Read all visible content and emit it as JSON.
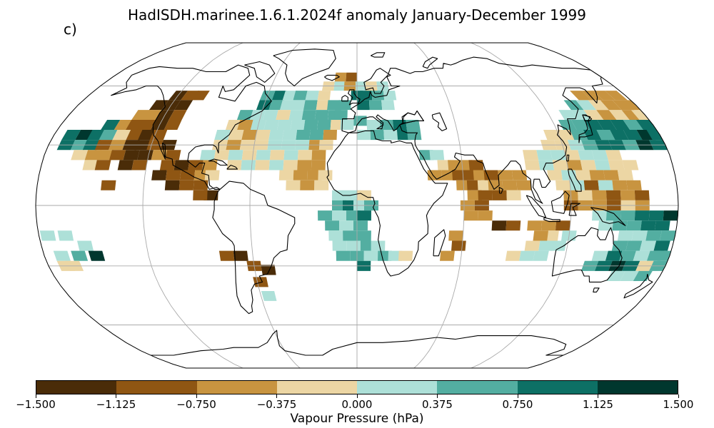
{
  "title": "HadISDH.marinee.1.6.1.2024f anomaly January-December 1999",
  "panel_label": "c)",
  "colorbar": {
    "label": "Vapour Pressure (hPa)",
    "ticks": [
      "−1.500",
      "−1.125",
      "−0.750",
      "−0.375",
      "0.000",
      "0.375",
      "0.750",
      "1.125",
      "1.500"
    ],
    "colors": [
      "#543005",
      "#8c510a",
      "#bf812d",
      "#dfc27d",
      "#f6e8c3",
      "#c7eae5",
      "#80cdc1",
      "#35978f",
      "#01665e",
      "#003c30"
    ],
    "bin_colors": [
      "#4a2c08",
      "#8f5613",
      "#c89440",
      "#ecd6a4",
      "#ade0d8",
      "#53aea1",
      "#0d7065",
      "#00372e"
    ]
  },
  "chart_data": {
    "type": "heatmap",
    "projection": "Robinson",
    "variable": "Vapour Pressure anomaly",
    "units": "hPa",
    "vmin": -1.5,
    "vmax": 1.5,
    "graticule": {
      "lon_step": 60,
      "lat_step": 30
    },
    "grid_cells": [
      [
        -120,
        55,
        0
      ],
      [
        -112,
        55,
        1
      ],
      [
        -105,
        55,
        1
      ],
      [
        -128,
        50,
        0
      ],
      [
        -120,
        50,
        0
      ],
      [
        -112,
        50,
        0
      ],
      [
        -135,
        45,
        2
      ],
      [
        -128,
        45,
        2
      ],
      [
        -120,
        45,
        0
      ],
      [
        -112,
        45,
        1
      ],
      [
        -150,
        40,
        6
      ],
      [
        -142,
        40,
        2
      ],
      [
        -135,
        40,
        1
      ],
      [
        -128,
        40,
        1
      ],
      [
        -120,
        40,
        0
      ],
      [
        -112,
        40,
        1
      ],
      [
        -170,
        35,
        6
      ],
      [
        -162,
        35,
        7
      ],
      [
        -155,
        35,
        6
      ],
      [
        -148,
        35,
        5
      ],
      [
        -140,
        35,
        3
      ],
      [
        -132,
        35,
        1
      ],
      [
        -125,
        35,
        0
      ],
      [
        -118,
        35,
        1
      ],
      [
        -170,
        30,
        6
      ],
      [
        -162,
        30,
        5
      ],
      [
        -155,
        30,
        6
      ],
      [
        -148,
        30,
        1
      ],
      [
        -140,
        30,
        2
      ],
      [
        -132,
        30,
        0
      ],
      [
        -125,
        30,
        0
      ],
      [
        -118,
        30,
        1
      ],
      [
        -110,
        30,
        0
      ],
      [
        -160,
        25,
        3
      ],
      [
        -152,
        25,
        2
      ],
      [
        -145,
        25,
        2
      ],
      [
        -138,
        25,
        1
      ],
      [
        -130,
        25,
        0
      ],
      [
        -122,
        25,
        0
      ],
      [
        -114,
        25,
        2
      ],
      [
        -106,
        25,
        1
      ],
      [
        -152,
        20,
        3
      ],
      [
        -145,
        20,
        1
      ],
      [
        -132,
        20,
        0
      ],
      [
        -124,
        20,
        1
      ],
      [
        -108,
        20,
        1
      ],
      [
        -100,
        20,
        0
      ],
      [
        -92,
        20,
        1
      ],
      [
        -84,
        20,
        2
      ],
      [
        -112,
        15,
        0
      ],
      [
        -104,
        15,
        1
      ],
      [
        -96,
        15,
        1
      ],
      [
        -88,
        15,
        2
      ],
      [
        -82,
        15,
        3
      ],
      [
        -140,
        10,
        1
      ],
      [
        -104,
        10,
        0
      ],
      [
        -96,
        10,
        1
      ],
      [
        -88,
        10,
        1
      ],
      [
        -82,
        5,
        0
      ],
      [
        -88,
        5,
        1
      ],
      [
        -175,
        -15,
        4
      ],
      [
        -165,
        -15,
        4
      ],
      [
        -155,
        -20,
        4
      ],
      [
        -150,
        -25,
        7
      ],
      [
        -160,
        -25,
        5
      ],
      [
        -170,
        -25,
        4
      ],
      [
        -170,
        -30,
        3
      ],
      [
        -165,
        -30,
        3
      ],
      [
        -75,
        -25,
        1
      ],
      [
        -67,
        -25,
        0
      ],
      [
        -60,
        -30,
        1
      ],
      [
        -52,
        -32,
        0
      ],
      [
        -58,
        -38,
        1
      ],
      [
        -55,
        -45,
        4
      ],
      [
        -60,
        55,
        5
      ],
      [
        -52,
        55,
        6
      ],
      [
        -45,
        55,
        4
      ],
      [
        -38,
        55,
        5
      ],
      [
        -30,
        55,
        4
      ],
      [
        -22,
        55,
        3
      ],
      [
        -60,
        50,
        6
      ],
      [
        -52,
        50,
        5
      ],
      [
        -45,
        50,
        4
      ],
      [
        -38,
        50,
        4
      ],
      [
        -30,
        50,
        5
      ],
      [
        -22,
        50,
        3
      ],
      [
        -15,
        50,
        5
      ],
      [
        -8,
        50,
        5
      ],
      [
        -70,
        45,
        5
      ],
      [
        -62,
        45,
        4
      ],
      [
        -54,
        45,
        4
      ],
      [
        -46,
        45,
        3
      ],
      [
        -38,
        45,
        4
      ],
      [
        -30,
        45,
        5
      ],
      [
        -22,
        45,
        5
      ],
      [
        -14,
        45,
        5
      ],
      [
        -75,
        40,
        3
      ],
      [
        -68,
        40,
        2
      ],
      [
        -60,
        40,
        4
      ],
      [
        -52,
        40,
        4
      ],
      [
        -44,
        40,
        4
      ],
      [
        -36,
        40,
        4
      ],
      [
        -28,
        40,
        5
      ],
      [
        -20,
        40,
        5
      ],
      [
        -12,
        40,
        3
      ],
      [
        -80,
        35,
        4
      ],
      [
        -72,
        35,
        3
      ],
      [
        -64,
        35,
        2
      ],
      [
        -56,
        35,
        3
      ],
      [
        -48,
        35,
        4
      ],
      [
        -40,
        35,
        4
      ],
      [
        -32,
        35,
        5
      ],
      [
        -24,
        35,
        5
      ],
      [
        -16,
        35,
        2
      ],
      [
        -80,
        30,
        3
      ],
      [
        -72,
        30,
        2
      ],
      [
        -64,
        30,
        3
      ],
      [
        -56,
        30,
        3
      ],
      [
        -48,
        30,
        4
      ],
      [
        -40,
        30,
        4
      ],
      [
        -32,
        30,
        4
      ],
      [
        -24,
        30,
        2
      ],
      [
        -18,
        30,
        3
      ],
      [
        -86,
        25,
        4
      ],
      [
        -78,
        25,
        3
      ],
      [
        -70,
        25,
        4
      ],
      [
        -62,
        25,
        3
      ],
      [
        -54,
        25,
        4
      ],
      [
        -46,
        25,
        3
      ],
      [
        -38,
        25,
        4
      ],
      [
        -30,
        25,
        3
      ],
      [
        -22,
        25,
        2
      ],
      [
        -70,
        20,
        3
      ],
      [
        -62,
        20,
        4
      ],
      [
        -54,
        20,
        3
      ],
      [
        -46,
        20,
        4
      ],
      [
        -38,
        20,
        3
      ],
      [
        -30,
        20,
        2
      ],
      [
        -22,
        20,
        2
      ],
      [
        -40,
        15,
        3
      ],
      [
        -32,
        15,
        2
      ],
      [
        -24,
        15,
        2
      ],
      [
        -18,
        15,
        3
      ],
      [
        -36,
        10,
        3
      ],
      [
        -28,
        10,
        2
      ],
      [
        -20,
        10,
        3
      ],
      [
        -10,
        5,
        4
      ],
      [
        -2,
        5,
        4
      ],
      [
        4,
        5,
        3
      ],
      [
        -10,
        0,
        5
      ],
      [
        -4,
        0,
        6
      ],
      [
        2,
        0,
        4
      ],
      [
        8,
        0,
        5
      ],
      [
        -18,
        -5,
        5
      ],
      [
        -10,
        -5,
        4
      ],
      [
        -2,
        -5,
        5
      ],
      [
        4,
        -5,
        6
      ],
      [
        -14,
        -10,
        5
      ],
      [
        -6,
        -10,
        4
      ],
      [
        2,
        -10,
        5
      ],
      [
        -12,
        -15,
        4
      ],
      [
        -4,
        -15,
        5
      ],
      [
        4,
        -15,
        5
      ],
      [
        -10,
        -20,
        4
      ],
      [
        -2,
        -20,
        4
      ],
      [
        6,
        -20,
        5
      ],
      [
        12,
        -20,
        4
      ],
      [
        -8,
        -25,
        5
      ],
      [
        0,
        -25,
        5
      ],
      [
        8,
        -25,
        4
      ],
      [
        16,
        -25,
        5
      ],
      [
        22,
        -25,
        4
      ],
      [
        28,
        -25,
        3
      ],
      [
        4,
        -30,
        6
      ],
      [
        -20,
        60,
        3
      ],
      [
        -12,
        60,
        4
      ],
      [
        -5,
        60,
        2
      ],
      [
        3,
        60,
        4
      ],
      [
        10,
        60,
        3
      ],
      [
        18,
        60,
        4
      ],
      [
        -12,
        65,
        2
      ],
      [
        -4,
        65,
        1
      ],
      [
        0,
        55,
        6
      ],
      [
        6,
        55,
        6
      ],
      [
        14,
        55,
        5
      ],
      [
        22,
        55,
        4
      ],
      [
        4,
        50,
        6
      ],
      [
        12,
        50,
        5
      ],
      [
        20,
        50,
        4
      ],
      [
        -10,
        45,
        5
      ],
      [
        -6,
        40,
        4
      ],
      [
        2,
        42,
        5
      ],
      [
        10,
        40,
        4
      ],
      [
        18,
        40,
        5
      ],
      [
        26,
        40,
        6
      ],
      [
        34,
        40,
        5
      ],
      [
        4,
        35,
        4
      ],
      [
        12,
        35,
        5
      ],
      [
        20,
        35,
        4
      ],
      [
        28,
        35,
        6
      ],
      [
        34,
        35,
        5
      ],
      [
        40,
        25,
        5
      ],
      [
        46,
        25,
        4
      ],
      [
        50,
        20,
        3
      ],
      [
        56,
        20,
        2
      ],
      [
        62,
        20,
        2
      ],
      [
        68,
        20,
        1
      ],
      [
        44,
        15,
        2
      ],
      [
        52,
        15,
        2
      ],
      [
        58,
        15,
        1
      ],
      [
        64,
        15,
        1
      ],
      [
        70,
        15,
        2
      ],
      [
        76,
        15,
        1
      ],
      [
        84,
        15,
        2
      ],
      [
        92,
        15,
        2
      ],
      [
        60,
        10,
        2
      ],
      [
        66,
        10,
        1
      ],
      [
        72,
        10,
        3
      ],
      [
        78,
        10,
        2
      ],
      [
        86,
        10,
        2
      ],
      [
        94,
        10,
        2
      ],
      [
        66,
        5,
        2
      ],
      [
        72,
        5,
        1
      ],
      [
        80,
        5,
        1
      ],
      [
        88,
        5,
        3
      ],
      [
        62,
        0,
        2
      ],
      [
        70,
        0,
        1
      ],
      [
        64,
        -5,
        2
      ],
      [
        72,
        -5,
        2
      ],
      [
        80,
        -10,
        0
      ],
      [
        88,
        -10,
        1
      ],
      [
        56,
        -15,
        2
      ],
      [
        100,
        -10,
        2
      ],
      [
        108,
        -10,
        2
      ],
      [
        116,
        -10,
        1
      ],
      [
        120,
        -15,
        4
      ],
      [
        110,
        -15,
        3
      ],
      [
        104,
        -15,
        2
      ],
      [
        58,
        -20,
        1
      ],
      [
        52,
        -25,
        2
      ],
      [
        100,
        -20,
        3
      ],
      [
        108,
        -20,
        4
      ],
      [
        115,
        -20,
        4
      ],
      [
        90,
        -25,
        3
      ],
      [
        98,
        -25,
        4
      ],
      [
        106,
        -25,
        4
      ],
      [
        100,
        25,
        3
      ],
      [
        108,
        25,
        4
      ],
      [
        116,
        25,
        4
      ],
      [
        124,
        25,
        3
      ],
      [
        132,
        25,
        4
      ],
      [
        140,
        25,
        4
      ],
      [
        148,
        25,
        3
      ],
      [
        100,
        20,
        3
      ],
      [
        108,
        20,
        4
      ],
      [
        116,
        20,
        3
      ],
      [
        124,
        20,
        2
      ],
      [
        132,
        20,
        3
      ],
      [
        140,
        20,
        4
      ],
      [
        148,
        20,
        3
      ],
      [
        156,
        20,
        3
      ],
      [
        112,
        15,
        3
      ],
      [
        120,
        15,
        4
      ],
      [
        128,
        15,
        3
      ],
      [
        136,
        15,
        2
      ],
      [
        144,
        15,
        2
      ],
      [
        152,
        15,
        3
      ],
      [
        116,
        10,
        3
      ],
      [
        124,
        10,
        4
      ],
      [
        132,
        10,
        1
      ],
      [
        140,
        10,
        4
      ],
      [
        148,
        10,
        2
      ],
      [
        156,
        10,
        2
      ],
      [
        120,
        5,
        2
      ],
      [
        128,
        5,
        3
      ],
      [
        136,
        5,
        2
      ],
      [
        144,
        5,
        1
      ],
      [
        152,
        5,
        2
      ],
      [
        160,
        5,
        1
      ],
      [
        120,
        0,
        1
      ],
      [
        128,
        0,
        2
      ],
      [
        136,
        0,
        2
      ],
      [
        144,
        0,
        1
      ],
      [
        152,
        0,
        3
      ],
      [
        160,
        0,
        2
      ],
      [
        112,
        30,
        3
      ],
      [
        120,
        30,
        3
      ],
      [
        128,
        30,
        4
      ],
      [
        136,
        30,
        5
      ],
      [
        144,
        30,
        6
      ],
      [
        152,
        30,
        6
      ],
      [
        160,
        30,
        5
      ],
      [
        168,
        30,
        7
      ],
      [
        176,
        30,
        6
      ],
      [
        116,
        35,
        3
      ],
      [
        124,
        35,
        3
      ],
      [
        132,
        35,
        5
      ],
      [
        140,
        35,
        6
      ],
      [
        148,
        35,
        5
      ],
      [
        156,
        35,
        6
      ],
      [
        164,
        35,
        6
      ],
      [
        172,
        35,
        7
      ],
      [
        178,
        35,
        6
      ],
      [
        128,
        40,
        5
      ],
      [
        136,
        40,
        5
      ],
      [
        144,
        40,
        6
      ],
      [
        152,
        40,
        6
      ],
      [
        160,
        40,
        6
      ],
      [
        168,
        40,
        5
      ],
      [
        176,
        40,
        6
      ],
      [
        132,
        45,
        4
      ],
      [
        140,
        45,
        4
      ],
      [
        148,
        45,
        3
      ],
      [
        156,
        45,
        2
      ],
      [
        164,
        45,
        3
      ],
      [
        172,
        45,
        2
      ],
      [
        178,
        45,
        3
      ],
      [
        140,
        50,
        5
      ],
      [
        148,
        50,
        4
      ],
      [
        156,
        50,
        3
      ],
      [
        164,
        50,
        2
      ],
      [
        172,
        50,
        2
      ],
      [
        178,
        50,
        2
      ],
      [
        150,
        55,
        2
      ],
      [
        158,
        55,
        2
      ],
      [
        166,
        55,
        2
      ],
      [
        174,
        55,
        2
      ],
      [
        136,
        -5,
        4
      ],
      [
        144,
        -5,
        5
      ],
      [
        152,
        -5,
        5
      ],
      [
        160,
        -5,
        6
      ],
      [
        168,
        -5,
        6
      ],
      [
        176,
        -5,
        7
      ],
      [
        140,
        -10,
        4
      ],
      [
        148,
        -10,
        5
      ],
      [
        156,
        -10,
        5
      ],
      [
        164,
        -10,
        6
      ],
      [
        172,
        -10,
        6
      ],
      [
        152,
        -15,
        4
      ],
      [
        160,
        -15,
        4
      ],
      [
        168,
        -15,
        5
      ],
      [
        176,
        -15,
        5
      ],
      [
        150,
        -20,
        5
      ],
      [
        158,
        -20,
        5
      ],
      [
        166,
        -20,
        4
      ],
      [
        174,
        -20,
        6
      ],
      [
        140,
        -25,
        4
      ],
      [
        148,
        -25,
        6
      ],
      [
        156,
        -25,
        5
      ],
      [
        164,
        -25,
        4
      ],
      [
        172,
        -25,
        5
      ],
      [
        178,
        -25,
        5
      ],
      [
        136,
        -30,
        5
      ],
      [
        144,
        -30,
        6
      ],
      [
        152,
        -30,
        7
      ],
      [
        160,
        -30,
        6
      ],
      [
        168,
        -30,
        3
      ],
      [
        176,
        -30,
        5
      ],
      [
        154,
        -35,
        4
      ],
      [
        162,
        -35,
        4
      ],
      [
        170,
        -35,
        5
      ]
    ]
  }
}
